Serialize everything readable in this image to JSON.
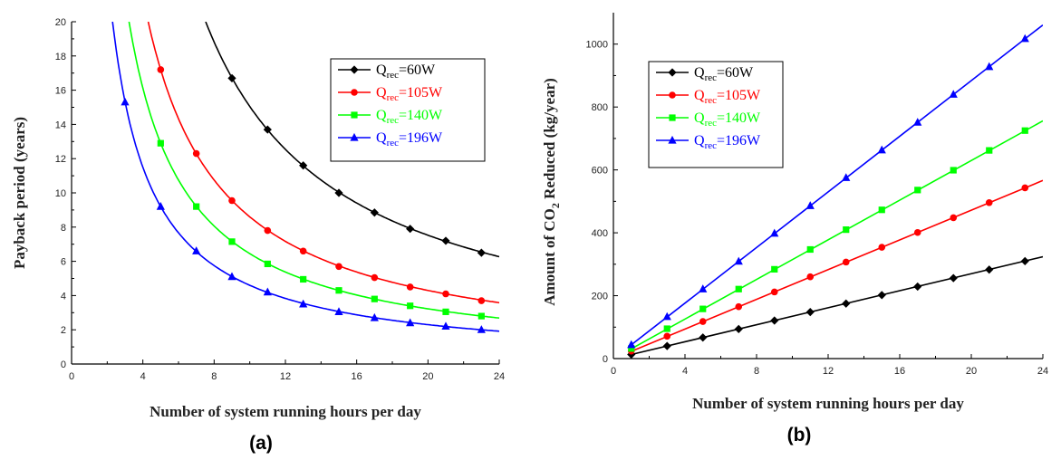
{
  "chart_data": [
    {
      "type": "line",
      "panel_label": "(a)",
      "xlabel": "Number of system running hours per day",
      "ylabel": "Payback period (years)",
      "xlim": [
        0,
        24
      ],
      "ylim": [
        0,
        20
      ],
      "xticks": [
        0,
        4,
        8,
        12,
        16,
        20,
        24
      ],
      "yticks": [
        0,
        2,
        4,
        6,
        8,
        10,
        12,
        14,
        16,
        18,
        20
      ],
      "legend_position": "top-right",
      "series": [
        {
          "name": "Qrec=60W",
          "legend_main": "Q",
          "legend_sub": "rec",
          "legend_tail": "=60W",
          "color": "#000000",
          "marker": "diamond",
          "k": 150.5,
          "marker_x": [
            9,
            11,
            13,
            15,
            17,
            19,
            21,
            23
          ],
          "values": [
            16.7,
            13.7,
            11.6,
            10.0,
            8.85,
            7.9,
            7.2,
            6.5
          ]
        },
        {
          "name": "Qrec=105W",
          "legend_main": "Q",
          "legend_sub": "rec",
          "legend_tail": "=105W",
          "color": "#ff0000",
          "marker": "circle",
          "k": 86.0,
          "marker_x": [
            5,
            7,
            9,
            11,
            13,
            15,
            17,
            19,
            21,
            23
          ],
          "values": [
            17.2,
            12.3,
            9.55,
            7.8,
            6.6,
            5.7,
            5.05,
            4.5,
            4.1,
            3.7
          ]
        },
        {
          "name": "Qrec=140W",
          "legend_main": "Q",
          "legend_sub": "rec",
          "legend_tail": "=140W",
          "color": "#00ff00",
          "marker": "square",
          "k": 64.5,
          "marker_x": [
            5,
            7,
            9,
            11,
            13,
            15,
            17,
            19,
            21,
            23
          ],
          "values": [
            12.9,
            9.2,
            7.15,
            5.85,
            4.95,
            4.3,
            3.8,
            3.4,
            3.05,
            2.8
          ]
        },
        {
          "name": "Qrec=196W",
          "legend_main": "Q",
          "legend_sub": "rec",
          "legend_tail": "=196W",
          "color": "#0000ff",
          "marker": "triangle",
          "k": 46.0,
          "marker_x": [
            3,
            5,
            7,
            9,
            11,
            13,
            15,
            17,
            19,
            21,
            23
          ],
          "values": [
            15.3,
            9.2,
            6.6,
            5.1,
            4.2,
            3.5,
            3.05,
            2.7,
            2.4,
            2.2,
            2.0
          ]
        }
      ]
    },
    {
      "type": "line",
      "panel_label": "(b)",
      "xlabel": "Number of system running hours per day",
      "ylabel": "Amount of CO2 Reduced (kg/year)",
      "ylabel_parts": {
        "pre": "Amount of CO",
        "sub": "2",
        "post": " Reduced (kg/year)"
      },
      "xlim": [
        0,
        24
      ],
      "ylim": [
        0,
        1100
      ],
      "xticks": [
        0,
        4,
        8,
        12,
        16,
        20,
        24
      ],
      "yticks": [
        0,
        200,
        400,
        600,
        800,
        1000
      ],
      "legend_position": "top-left",
      "series": [
        {
          "name": "Qrec=60W",
          "legend_main": "Q",
          "legend_sub": "rec",
          "legend_tail": "=60W",
          "color": "#000000",
          "marker": "diamond",
          "slope": 13.5,
          "marker_x": [
            1,
            3,
            5,
            7,
            9,
            11,
            13,
            15,
            17,
            19,
            21,
            23
          ],
          "values": [
            13,
            40,
            67,
            94,
            121,
            148,
            175,
            202,
            229,
            256,
            283,
            310
          ]
        },
        {
          "name": "Qrec=105W",
          "legend_main": "Q",
          "legend_sub": "rec",
          "legend_tail": "=105W",
          "color": "#ff0000",
          "marker": "circle",
          "slope": 23.6,
          "marker_x": [
            1,
            3,
            5,
            7,
            9,
            11,
            13,
            15,
            17,
            19,
            21,
            23
          ],
          "values": [
            24,
            71,
            118,
            165,
            212,
            260,
            307,
            354,
            401,
            448,
            496,
            543
          ]
        },
        {
          "name": "Qrec=140W",
          "legend_main": "Q",
          "legend_sub": "rec",
          "legend_tail": "=140W",
          "color": "#00ff00",
          "marker": "square",
          "slope": 31.5,
          "marker_x": [
            1,
            3,
            5,
            7,
            9,
            11,
            13,
            15,
            17,
            19,
            21,
            23
          ],
          "values": [
            32,
            95,
            158,
            221,
            284,
            347,
            410,
            473,
            536,
            599,
            662,
            725
          ]
        },
        {
          "name": "Qrec=196W",
          "legend_main": "Q",
          "legend_sub": "rec",
          "legend_tail": "=196W",
          "color": "#0000ff",
          "marker": "triangle",
          "slope": 44.2,
          "marker_x": [
            1,
            3,
            5,
            7,
            9,
            11,
            13,
            15,
            17,
            19,
            21,
            23
          ],
          "values": [
            44,
            133,
            221,
            309,
            398,
            486,
            575,
            663,
            751,
            840,
            928,
            1017
          ]
        }
      ]
    }
  ]
}
